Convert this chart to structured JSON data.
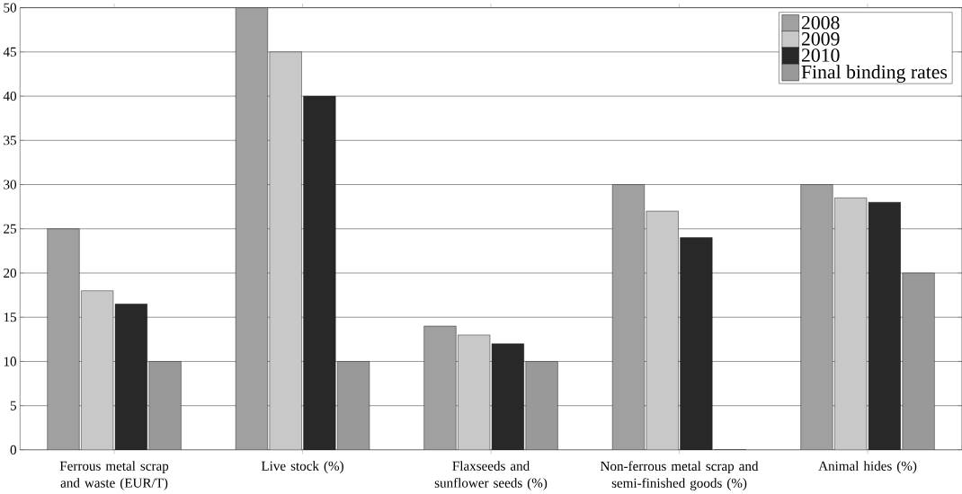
{
  "chart_data": {
    "type": "bar",
    "categories": [
      "Ferrous metal scrap and waste (EUR/T)",
      "Live stock (%)",
      "Flaxseeds and sunflower seeds (%)",
      "Non-ferrous metal scrap and semi-finished goods (%)",
      "Animal hides (%)"
    ],
    "series": [
      {
        "name": "2008",
        "color": "#a0a0a0",
        "values": [
          25,
          50,
          14,
          30,
          30
        ]
      },
      {
        "name": "2009",
        "color": "#c8c8c8",
        "values": [
          18,
          45,
          13,
          27,
          28.5
        ]
      },
      {
        "name": "2010",
        "color": "#282828",
        "values": [
          16.5,
          40,
          12,
          24,
          28
        ]
      },
      {
        "name": "Final binding rates",
        "color": "#999999",
        "values": [
          10,
          10,
          10,
          0,
          20
        ]
      }
    ],
    "ylim": [
      0,
      50
    ],
    "yticks": [
      0,
      5,
      10,
      15,
      20,
      25,
      30,
      35,
      40,
      45,
      50
    ],
    "grid": "y",
    "legend": "top right"
  }
}
